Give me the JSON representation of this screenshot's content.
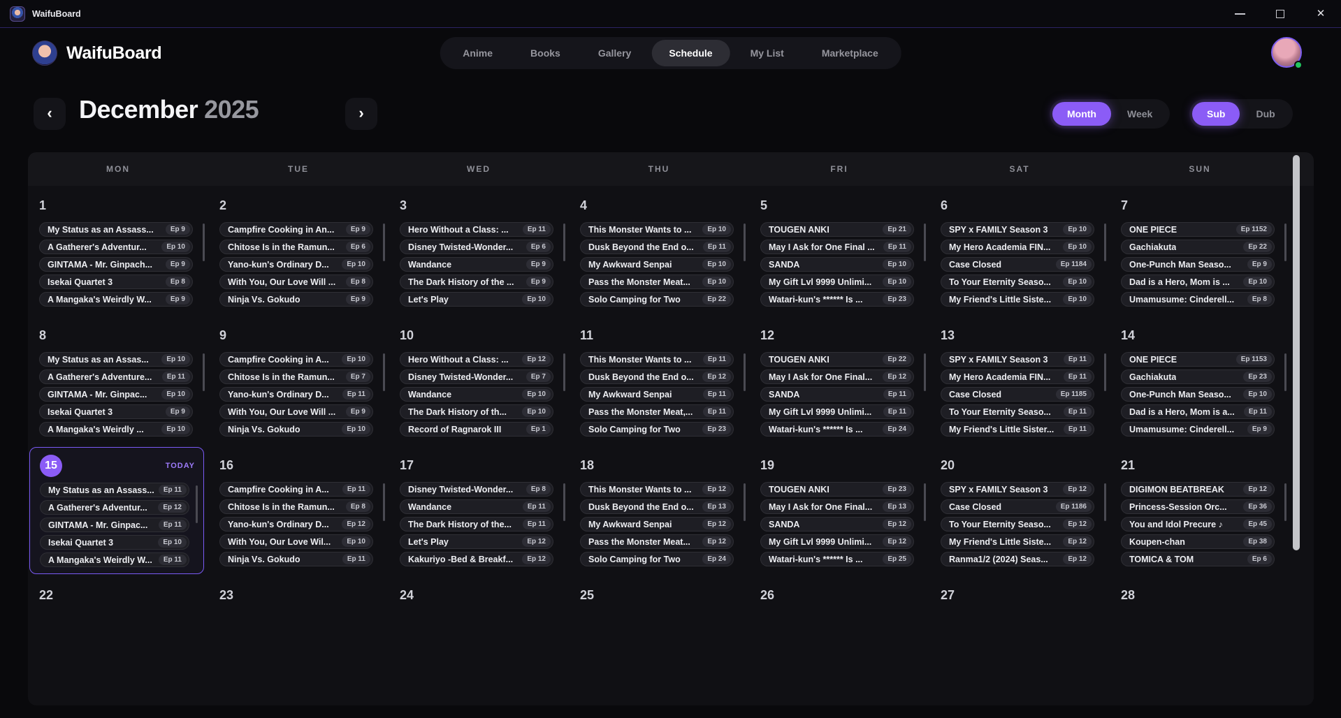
{
  "window": {
    "title": "WaifuBoard"
  },
  "header": {
    "app_name": "WaifuBoard",
    "nav": [
      {
        "label": "Anime",
        "active": false
      },
      {
        "label": "Books",
        "active": false
      },
      {
        "label": "Gallery",
        "active": false
      },
      {
        "label": "Schedule",
        "active": true
      },
      {
        "label": "My List",
        "active": false
      },
      {
        "label": "Marketplace",
        "active": false
      }
    ]
  },
  "toolbar": {
    "month_label": "December",
    "year_label": "2025",
    "view_toggle": [
      {
        "label": "Month",
        "active": true
      },
      {
        "label": "Week",
        "active": false
      }
    ],
    "audio_toggle": [
      {
        "label": "Sub",
        "active": true
      },
      {
        "label": "Dub",
        "active": false
      }
    ]
  },
  "colors": {
    "accent": "#8b5cf6",
    "online": "#22c55e"
  },
  "calendar": {
    "weekdays": [
      "MON",
      "TUE",
      "WED",
      "THU",
      "FRI",
      "SAT",
      "SUN"
    ],
    "today_label": "TODAY",
    "weeks": [
      {
        "days": [
          {
            "num": "1",
            "today": false,
            "entries": [
              {
                "title": "My Status as an Assass...",
                "ep": "Ep 9"
              },
              {
                "title": "A Gatherer's Adventur...",
                "ep": "Ep 10"
              },
              {
                "title": "GINTAMA - Mr. Ginpach...",
                "ep": "Ep 9"
              },
              {
                "title": "Isekai Quartet 3",
                "ep": "Ep 8"
              },
              {
                "title": "A Mangaka's Weirdly W...",
                "ep": "Ep 9"
              }
            ]
          },
          {
            "num": "2",
            "today": false,
            "entries": [
              {
                "title": "Campfire Cooking in An...",
                "ep": "Ep 9"
              },
              {
                "title": "Chitose Is in the Ramun...",
                "ep": "Ep 6"
              },
              {
                "title": "Yano-kun's Ordinary D...",
                "ep": "Ep 10"
              },
              {
                "title": "With You, Our Love Will ...",
                "ep": "Ep 8"
              },
              {
                "title": "Ninja Vs. Gokudo",
                "ep": "Ep 9"
              }
            ]
          },
          {
            "num": "3",
            "today": false,
            "entries": [
              {
                "title": "Hero Without a Class: ...",
                "ep": "Ep 11"
              },
              {
                "title": "Disney Twisted-Wonder...",
                "ep": "Ep 6"
              },
              {
                "title": "Wandance",
                "ep": "Ep 9"
              },
              {
                "title": "The Dark History of the ...",
                "ep": "Ep 9"
              },
              {
                "title": "Let's Play",
                "ep": "Ep 10"
              }
            ]
          },
          {
            "num": "4",
            "today": false,
            "entries": [
              {
                "title": "This Monster Wants to ...",
                "ep": "Ep 10"
              },
              {
                "title": "Dusk Beyond the End o...",
                "ep": "Ep 11"
              },
              {
                "title": "My Awkward Senpai",
                "ep": "Ep 10"
              },
              {
                "title": "Pass the Monster Meat...",
                "ep": "Ep 10"
              },
              {
                "title": "Solo Camping for Two",
                "ep": "Ep 22"
              }
            ]
          },
          {
            "num": "5",
            "today": false,
            "entries": [
              {
                "title": "TOUGEN ANKI",
                "ep": "Ep 21"
              },
              {
                "title": "May I Ask for One Final ...",
                "ep": "Ep 11"
              },
              {
                "title": "SANDA",
                "ep": "Ep 10"
              },
              {
                "title": "My Gift Lvl 9999 Unlimi...",
                "ep": "Ep 10"
              },
              {
                "title": "Watari-kun's ****** Is ...",
                "ep": "Ep 23"
              }
            ]
          },
          {
            "num": "6",
            "today": false,
            "entries": [
              {
                "title": "SPY x FAMILY Season 3",
                "ep": "Ep 10"
              },
              {
                "title": "My Hero Academia FIN...",
                "ep": "Ep 10"
              },
              {
                "title": "Case Closed",
                "ep": "Ep 1184"
              },
              {
                "title": "To Your Eternity Seaso...",
                "ep": "Ep 10"
              },
              {
                "title": "My Friend's Little Siste...",
                "ep": "Ep 10"
              }
            ]
          },
          {
            "num": "7",
            "today": false,
            "entries": [
              {
                "title": "ONE PIECE",
                "ep": "Ep 1152"
              },
              {
                "title": "Gachiakuta",
                "ep": "Ep 22"
              },
              {
                "title": "One-Punch Man Seaso...",
                "ep": "Ep 9"
              },
              {
                "title": "Dad is a Hero, Mom is ...",
                "ep": "Ep 10"
              },
              {
                "title": "Umamusume: Cinderell...",
                "ep": "Ep 8"
              }
            ]
          }
        ]
      },
      {
        "days": [
          {
            "num": "8",
            "today": false,
            "entries": [
              {
                "title": "My Status as an Assas...",
                "ep": "Ep 10"
              },
              {
                "title": "A Gatherer's Adventure...",
                "ep": "Ep 11"
              },
              {
                "title": "GINTAMA - Mr. Ginpac...",
                "ep": "Ep 10"
              },
              {
                "title": "Isekai Quartet 3",
                "ep": "Ep 9"
              },
              {
                "title": "A Mangaka's Weirdly ...",
                "ep": "Ep 10"
              }
            ]
          },
          {
            "num": "9",
            "today": false,
            "entries": [
              {
                "title": "Campfire Cooking in A...",
                "ep": "Ep 10"
              },
              {
                "title": "Chitose Is in the Ramun...",
                "ep": "Ep 7"
              },
              {
                "title": "Yano-kun's Ordinary D...",
                "ep": "Ep 11"
              },
              {
                "title": "With You, Our Love Will ...",
                "ep": "Ep 9"
              },
              {
                "title": "Ninja Vs. Gokudo",
                "ep": "Ep 10"
              }
            ]
          },
          {
            "num": "10",
            "today": false,
            "entries": [
              {
                "title": "Hero Without a Class: ...",
                "ep": "Ep 12"
              },
              {
                "title": "Disney Twisted-Wonder...",
                "ep": "Ep 7"
              },
              {
                "title": "Wandance",
                "ep": "Ep 10"
              },
              {
                "title": "The Dark History of th...",
                "ep": "Ep 10"
              },
              {
                "title": "Record of Ragnarok III",
                "ep": "Ep 1"
              }
            ]
          },
          {
            "num": "11",
            "today": false,
            "entries": [
              {
                "title": "This Monster Wants to ...",
                "ep": "Ep 11"
              },
              {
                "title": "Dusk Beyond the End o...",
                "ep": "Ep 12"
              },
              {
                "title": "My Awkward Senpai",
                "ep": "Ep 11"
              },
              {
                "title": "Pass the Monster Meat,...",
                "ep": "Ep 11"
              },
              {
                "title": "Solo Camping for Two",
                "ep": "Ep 23"
              }
            ]
          },
          {
            "num": "12",
            "today": false,
            "entries": [
              {
                "title": "TOUGEN ANKI",
                "ep": "Ep 22"
              },
              {
                "title": "May I Ask for One Final...",
                "ep": "Ep 12"
              },
              {
                "title": "SANDA",
                "ep": "Ep 11"
              },
              {
                "title": "My Gift Lvl 9999 Unlimi...",
                "ep": "Ep 11"
              },
              {
                "title": "Watari-kun's ****** Is ...",
                "ep": "Ep 24"
              }
            ]
          },
          {
            "num": "13",
            "today": false,
            "entries": [
              {
                "title": "SPY x FAMILY Season 3",
                "ep": "Ep 11"
              },
              {
                "title": "My Hero Academia FIN...",
                "ep": "Ep 11"
              },
              {
                "title": "Case Closed",
                "ep": "Ep 1185"
              },
              {
                "title": "To Your Eternity Seaso...",
                "ep": "Ep 11"
              },
              {
                "title": "My Friend's Little Sister...",
                "ep": "Ep 11"
              }
            ]
          },
          {
            "num": "14",
            "today": false,
            "entries": [
              {
                "title": "ONE PIECE",
                "ep": "Ep 1153"
              },
              {
                "title": "Gachiakuta",
                "ep": "Ep 23"
              },
              {
                "title": "One-Punch Man Seaso...",
                "ep": "Ep 10"
              },
              {
                "title": "Dad is a Hero, Mom is a...",
                "ep": "Ep 11"
              },
              {
                "title": "Umamusume: Cinderell...",
                "ep": "Ep 9"
              }
            ]
          }
        ]
      },
      {
        "days": [
          {
            "num": "15",
            "today": true,
            "entries": [
              {
                "title": "My Status as an Assass...",
                "ep": "Ep 11"
              },
              {
                "title": "A Gatherer's Adventur...",
                "ep": "Ep 12"
              },
              {
                "title": "GINTAMA - Mr. Ginpac...",
                "ep": "Ep 11"
              },
              {
                "title": "Isekai Quartet 3",
                "ep": "Ep 10"
              },
              {
                "title": "A Mangaka's Weirdly W...",
                "ep": "Ep 11"
              }
            ]
          },
          {
            "num": "16",
            "today": false,
            "entries": [
              {
                "title": "Campfire Cooking in A...",
                "ep": "Ep 11"
              },
              {
                "title": "Chitose Is in the Ramun...",
                "ep": "Ep 8"
              },
              {
                "title": "Yano-kun's Ordinary D...",
                "ep": "Ep 12"
              },
              {
                "title": "With You, Our Love Wil...",
                "ep": "Ep 10"
              },
              {
                "title": "Ninja Vs. Gokudo",
                "ep": "Ep 11"
              }
            ]
          },
          {
            "num": "17",
            "today": false,
            "entries": [
              {
                "title": "Disney Twisted-Wonder...",
                "ep": "Ep 8"
              },
              {
                "title": "Wandance",
                "ep": "Ep 11"
              },
              {
                "title": "The Dark History of the...",
                "ep": "Ep 11"
              },
              {
                "title": "Let's Play",
                "ep": "Ep 12"
              },
              {
                "title": "Kakuriyo -Bed & Breakf...",
                "ep": "Ep 12"
              }
            ]
          },
          {
            "num": "18",
            "today": false,
            "entries": [
              {
                "title": "This Monster Wants to ...",
                "ep": "Ep 12"
              },
              {
                "title": "Dusk Beyond the End o...",
                "ep": "Ep 13"
              },
              {
                "title": "My Awkward Senpai",
                "ep": "Ep 12"
              },
              {
                "title": "Pass the Monster Meat...",
                "ep": "Ep 12"
              },
              {
                "title": "Solo Camping for Two",
                "ep": "Ep 24"
              }
            ]
          },
          {
            "num": "19",
            "today": false,
            "entries": [
              {
                "title": "TOUGEN ANKI",
                "ep": "Ep 23"
              },
              {
                "title": "May I Ask for One Final...",
                "ep": "Ep 13"
              },
              {
                "title": "SANDA",
                "ep": "Ep 12"
              },
              {
                "title": "My Gift Lvl 9999 Unlimi...",
                "ep": "Ep 12"
              },
              {
                "title": "Watari-kun's ****** Is ...",
                "ep": "Ep 25"
              }
            ]
          },
          {
            "num": "20",
            "today": false,
            "entries": [
              {
                "title": "SPY x FAMILY Season 3",
                "ep": "Ep 12"
              },
              {
                "title": "Case Closed",
                "ep": "Ep 1186"
              },
              {
                "title": "To Your Eternity Seaso...",
                "ep": "Ep 12"
              },
              {
                "title": "My Friend's Little Siste...",
                "ep": "Ep 12"
              },
              {
                "title": "Ranma1/2 (2024) Seas...",
                "ep": "Ep 12"
              }
            ]
          },
          {
            "num": "21",
            "today": false,
            "entries": [
              {
                "title": "DIGIMON BEATBREAK",
                "ep": "Ep 12"
              },
              {
                "title": "Princess-Session Orc...",
                "ep": "Ep 36"
              },
              {
                "title": "You and Idol Precure ♪",
                "ep": "Ep 45"
              },
              {
                "title": "Koupen-chan",
                "ep": "Ep 38"
              },
              {
                "title": "TOMICA & TOM",
                "ep": "Ep 6"
              }
            ]
          }
        ]
      },
      {
        "days": [
          {
            "num": "22",
            "today": false,
            "entries": []
          },
          {
            "num": "23",
            "today": false,
            "entries": []
          },
          {
            "num": "24",
            "today": false,
            "entries": []
          },
          {
            "num": "25",
            "today": false,
            "entries": []
          },
          {
            "num": "26",
            "today": false,
            "entries": []
          },
          {
            "num": "27",
            "today": false,
            "entries": []
          },
          {
            "num": "28",
            "today": false,
            "entries": []
          }
        ]
      }
    ]
  }
}
